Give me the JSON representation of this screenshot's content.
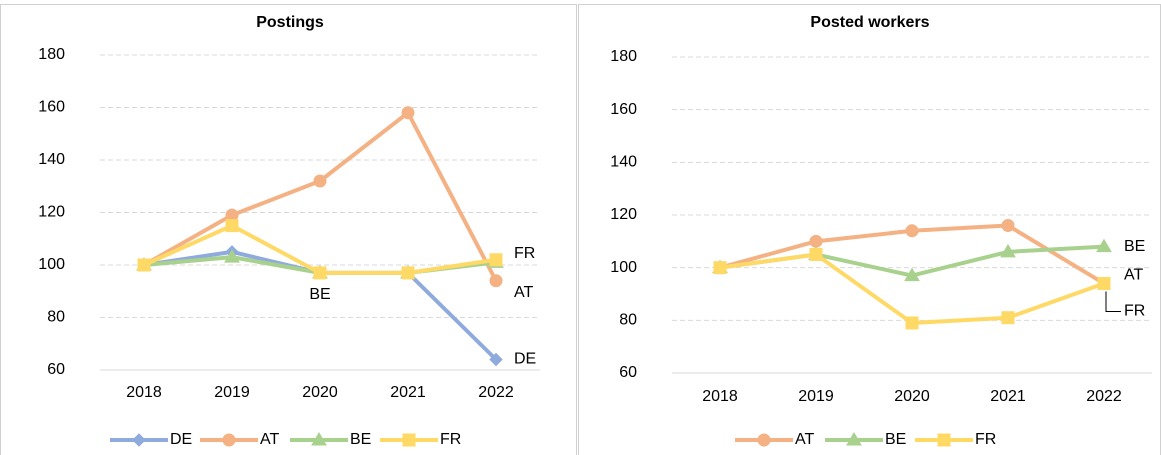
{
  "chart_data": [
    {
      "type": "line",
      "title": "Postings",
      "categories": [
        "2018",
        "2019",
        "2020",
        "2021",
        "2022"
      ],
      "ylim": [
        60,
        180
      ],
      "yticks": [
        60,
        80,
        100,
        120,
        140,
        160,
        180
      ],
      "grid": true,
      "series": [
        {
          "name": "DE",
          "color": "#8faadc",
          "marker": "diamond",
          "values": [
            100,
            105,
            97,
            97,
            64
          ]
        },
        {
          "name": "AT",
          "color": "#f4b183",
          "marker": "circle",
          "values": [
            100,
            119,
            132,
            158,
            94
          ]
        },
        {
          "name": "BE",
          "color": "#a9d18e",
          "marker": "triangle",
          "values": [
            100,
            103,
            97,
            97,
            101
          ]
        },
        {
          "name": "FR",
          "color": "#ffd966",
          "marker": "square",
          "values": [
            100,
            115,
            97,
            97,
            102
          ]
        }
      ]
    },
    {
      "type": "line",
      "title": "Posted workers",
      "categories": [
        "2018",
        "2019",
        "2020",
        "2021",
        "2022"
      ],
      "ylim": [
        60,
        180
      ],
      "yticks": [
        60,
        80,
        100,
        120,
        140,
        160,
        180
      ],
      "grid": true,
      "series": [
        {
          "name": "AT",
          "color": "#f4b183",
          "marker": "circle",
          "values": [
            100,
            110,
            114,
            116,
            94
          ]
        },
        {
          "name": "BE",
          "color": "#a9d18e",
          "marker": "triangle",
          "values": [
            100,
            105,
            97,
            106,
            108
          ]
        },
        {
          "name": "FR",
          "color": "#ffd966",
          "marker": "square",
          "values": [
            100,
            105,
            79,
            81,
            94
          ]
        }
      ]
    }
  ]
}
